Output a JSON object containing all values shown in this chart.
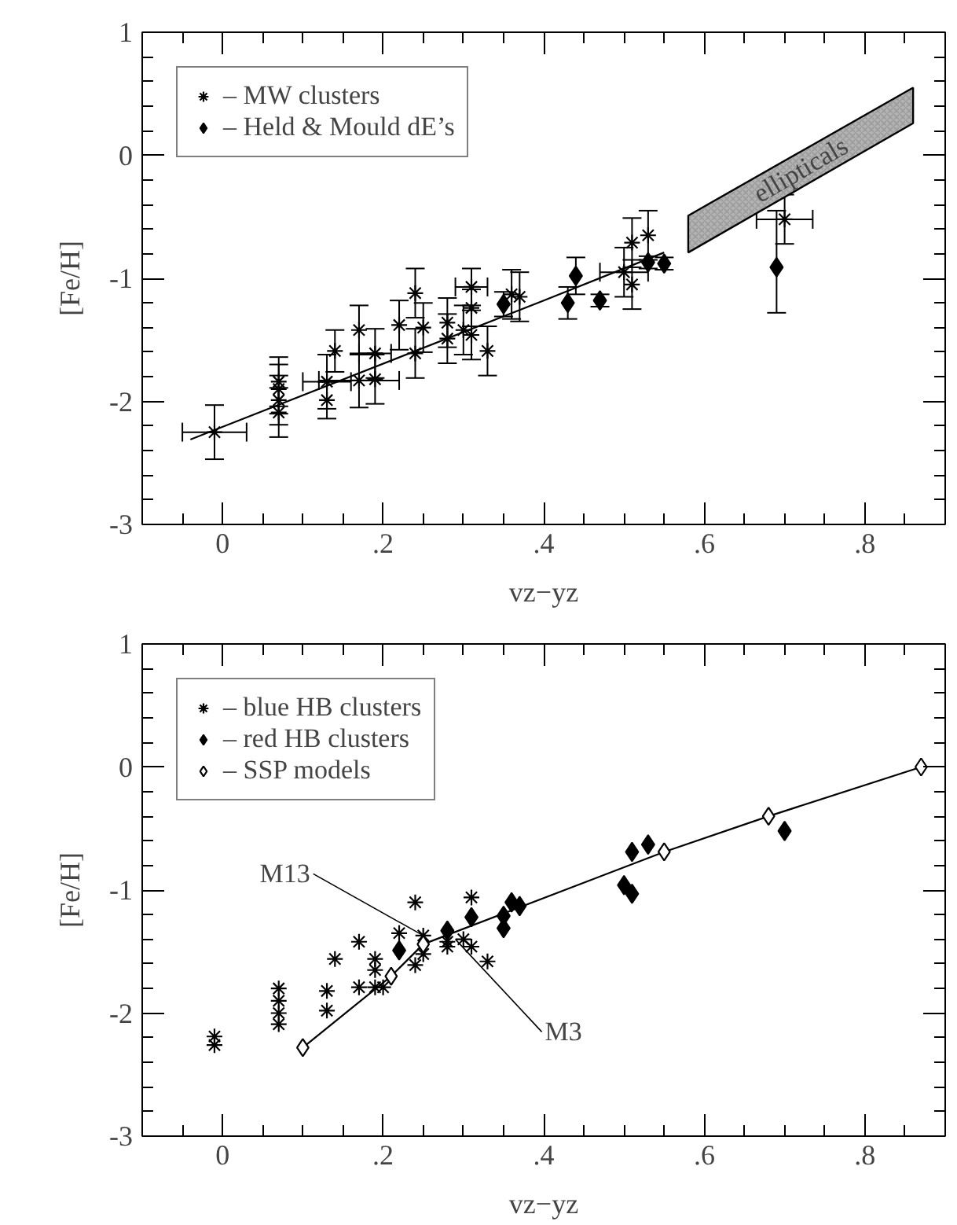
{
  "chart_data": [
    {
      "type": "scatter",
      "xlabel": "vz−yz",
      "ylabel": "[Fe/H]",
      "xlim": [
        -0.1,
        0.9
      ],
      "ylim": [
        -3,
        1
      ],
      "xticks": [
        0,
        {
          "value": 0.2,
          "label": ".2"
        },
        {
          "value": 0.4,
          "label": ".4"
        },
        {
          "value": 0.6,
          "label": ".6"
        },
        {
          "value": 0.8,
          "label": ".8"
        }
      ],
      "yticks": [
        -3,
        -2,
        -1,
        0,
        1
      ],
      "grid": false,
      "legend": "top left",
      "series": [
        {
          "name": "– MW clusters",
          "marker": "cross",
          "color": "#000000",
          "x": [
            -0.01,
            0.07,
            0.07,
            0.07,
            0.07,
            0.13,
            0.13,
            0.14,
            0.17,
            0.17,
            0.19,
            0.19,
            0.22,
            0.24,
            0.25,
            0.24,
            0.28,
            0.28,
            0.31,
            0.31,
            0.3,
            0.31,
            0.33,
            0.36,
            0.37,
            0.51,
            0.53,
            0.5,
            0.51,
            0.7
          ],
          "values": [
            -2.25,
            -1.84,
            -1.9,
            -1.99,
            -2.09,
            -1.84,
            -1.99,
            -1.59,
            -1.42,
            -1.83,
            -1.61,
            -1.82,
            -1.38,
            -1.12,
            -1.4,
            -1.61,
            -1.36,
            -1.49,
            -1.07,
            -1.24,
            -1.42,
            -1.46,
            -1.59,
            -1.13,
            -1.15,
            -0.71,
            -0.65,
            -0.95,
            -1.05,
            -0.52
          ],
          "errors": [
            0.22,
            0.2,
            0.2,
            0.2,
            0.2,
            0.22,
            0.15,
            0.17,
            0.2,
            0.22,
            0.2,
            0.2,
            0.2,
            0.2,
            0.2,
            0.2,
            0.2,
            0.2,
            0.15,
            0.15,
            0.2,
            0.2,
            0.2,
            0.2,
            0.2,
            0.2,
            0.2,
            0.2,
            0.2,
            0.2
          ],
          "xerrors": [
            0.04,
            null,
            null,
            null,
            null,
            0.03,
            null,
            null,
            null,
            0.05,
            0.02,
            null,
            null,
            null,
            null,
            null,
            null,
            null,
            0.02,
            null,
            null,
            null,
            null,
            null,
            null,
            null,
            null,
            0.03,
            null,
            0.035
          ]
        },
        {
          "name": "– Held & Mould dE’s",
          "marker": "diamond",
          "color": "#000000",
          "x": [
            0.35,
            0.43,
            0.44,
            0.47,
            0.53,
            0.55,
            0.69
          ],
          "values": [
            -1.21,
            -1.2,
            -0.98,
            -1.18,
            -0.87,
            -0.88,
            -0.91
          ],
          "errors": [
            0.1,
            0.13,
            0.15,
            0.05,
            0.05,
            0.05,
            [
              -1.28,
              -0.45
            ]
          ]
        },
        {
          "type": "line",
          "marker": "none",
          "color": "#000000",
          "x": [
            -0.04,
            0.4,
            0.55
          ],
          "values": [
            -2.31,
            -1.18,
            -0.79
          ]
        },
        {
          "type": "area",
          "color": "#b4b4b4",
          "x": [
            0.58,
            0.86,
            0.86,
            0.58
          ],
          "values": [
            -0.49,
            0.55,
            0.26,
            -0.79
          ]
        }
      ],
      "annotations": [
        "ellipticals"
      ]
    },
    {
      "type": "scatter",
      "xlabel": "vz−yz",
      "ylabel": "[Fe/H]",
      "xlim": [
        -0.1,
        0.9
      ],
      "ylim": [
        -3,
        1
      ],
      "xticks": [
        0,
        {
          "value": 0.2,
          "label": ".2"
        },
        {
          "value": 0.4,
          "label": ".4"
        },
        {
          "value": 0.6,
          "label": ".6"
        },
        {
          "value": 0.8,
          "label": ".8"
        }
      ],
      "yticks": [
        -3,
        -2,
        -1,
        0,
        1
      ],
      "grid": false,
      "legend": "top left",
      "series": [
        {
          "name": "– blue HB clusters",
          "marker": "cross",
          "color": "#000000",
          "x": [
            -0.01,
            -0.01,
            0.07,
            0.07,
            0.07,
            0.07,
            0.13,
            0.13,
            0.14,
            0.17,
            0.17,
            0.19,
            0.19,
            0.19,
            0.2,
            0.22,
            0.24,
            0.25,
            0.25,
            0.24,
            0.28,
            0.28,
            0.31,
            0.3,
            0.31,
            0.33
          ],
          "values": [
            -2.19,
            -2.26,
            -1.8,
            -1.9,
            -2.0,
            -2.09,
            -1.82,
            -1.98,
            -1.56,
            -1.42,
            -1.79,
            -1.56,
            -1.65,
            -1.79,
            -1.79,
            -1.35,
            -1.1,
            -1.37,
            -1.52,
            -1.61,
            -1.42,
            -1.46,
            -1.06,
            -1.4,
            -1.46,
            -1.58
          ]
        },
        {
          "name": "– red HB clusters",
          "marker": "diamond",
          "color": "#000000",
          "x": [
            0.22,
            0.28,
            0.31,
            0.35,
            0.36,
            0.37,
            0.35,
            0.51,
            0.53,
            0.5,
            0.51,
            0.7
          ],
          "values": [
            -1.49,
            -1.33,
            -1.22,
            -1.21,
            -1.1,
            -1.13,
            -1.31,
            -0.69,
            -0.63,
            -0.96,
            -1.03,
            -0.52
          ]
        },
        {
          "name": "– SSP models",
          "type": "line",
          "marker": "diamond",
          "color": "#000000",
          "x": [
            0.1,
            0.21,
            0.25,
            0.55,
            0.68,
            0.87
          ],
          "values": [
            -2.28,
            -1.7,
            -1.44,
            -0.69,
            -0.4,
            0.0
          ]
        }
      ],
      "annotations": [
        {
          "text": "M13",
          "x": 0.25,
          "y": -1.37
        },
        {
          "text": "M3",
          "x": 0.29,
          "y": -1.4
        }
      ]
    }
  ]
}
